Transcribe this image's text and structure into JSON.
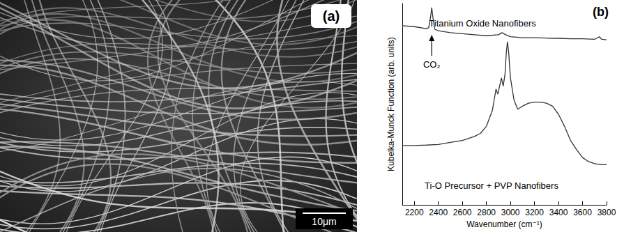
{
  "chart_data": {
    "type": "line",
    "title": "(b)",
    "x_label": "Wavenumber (cm⁻¹)",
    "y_label": "Kubelka-Munck Function (arb. units)",
    "xlim": [
      2100,
      3800
    ],
    "xticks": [
      2200,
      2400,
      2600,
      2800,
      3000,
      3200,
      3400,
      3600,
      3800
    ],
    "ylim": [
      0,
      10
    ],
    "tick_labels": "x",
    "grid": false,
    "series": [
      {
        "name": "Titanium Oxide Nanofibers",
        "color": "#333333",
        "x": [
          2100,
          2200,
          2300,
          2320,
          2335,
          2345,
          2355,
          2370,
          2400,
          2500,
          2600,
          2700,
          2800,
          2900,
          2930,
          2960,
          3000,
          3100,
          3200,
          3300,
          3400,
          3500,
          3600,
          3700,
          3740,
          3760,
          3800
        ],
        "values": [
          8.9,
          8.85,
          8.75,
          8.8,
          9.3,
          9.8,
          9.3,
          8.72,
          8.65,
          8.55,
          8.5,
          8.45,
          8.4,
          8.45,
          8.55,
          8.45,
          8.35,
          8.3,
          8.3,
          8.28,
          8.27,
          8.25,
          8.25,
          8.22,
          8.35,
          8.22,
          8.2
        ]
      },
      {
        "name": "Ti-O Precursor + PVP Nanofibers",
        "color": "#333333",
        "x": [
          2100,
          2200,
          2300,
          2400,
          2500,
          2600,
          2700,
          2750,
          2800,
          2850,
          2870,
          2880,
          2895,
          2910,
          2925,
          2940,
          2955,
          2965,
          2975,
          2985,
          3000,
          3030,
          3060,
          3100,
          3150,
          3200,
          3250,
          3300,
          3350,
          3400,
          3450,
          3500,
          3550,
          3600,
          3650,
          3700,
          3750,
          3800
        ],
        "values": [
          2.95,
          2.95,
          2.97,
          3.0,
          3.1,
          3.2,
          3.4,
          3.55,
          3.9,
          4.7,
          5.4,
          5.75,
          5.5,
          5.9,
          6.3,
          5.9,
          6.5,
          7.5,
          8.1,
          7.6,
          6.3,
          5.2,
          4.75,
          4.9,
          5.05,
          5.1,
          5.1,
          5.05,
          4.9,
          4.5,
          3.9,
          3.2,
          2.75,
          2.35,
          2.15,
          2.05,
          2.0,
          2.0
        ]
      }
    ],
    "annotations": [
      {
        "text": "CO₂",
        "x": 2345
      }
    ]
  },
  "image_panel": {
    "label": "(a)",
    "scale_bar": "10μm"
  }
}
